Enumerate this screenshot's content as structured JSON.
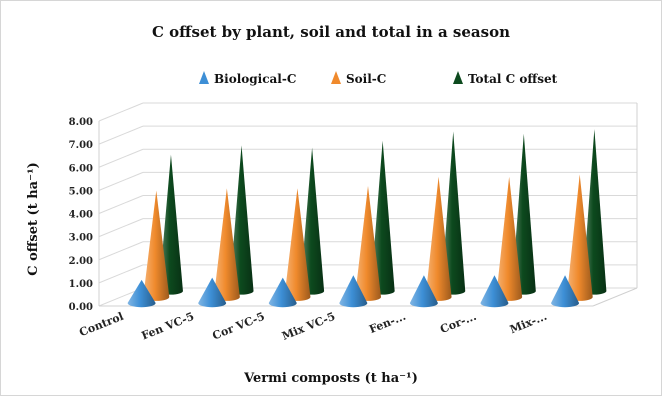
{
  "chart_data": {
    "type": "bar",
    "title": "C offset by plant, soil and total in a season",
    "xlabel": "Vermi composts (t ha⁻¹)",
    "ylabel": "C offset (t ha⁻¹)",
    "ylim": [
      0,
      8
    ],
    "yticks": [
      "0.00",
      "1.00",
      "2.00",
      "3.00",
      "4.00",
      "5.00",
      "6.00",
      "7.00",
      "8.00"
    ],
    "categories": [
      "Control",
      "Fen VC-5",
      "Cor VC-5",
      "Mix VC-5",
      "Fen-...",
      "Cor-...",
      "Mix-..."
    ],
    "legend_position": "top",
    "grid": true,
    "shape": "cone",
    "series": [
      {
        "name": "Biological-C",
        "color": "#3d8fd6",
        "values": [
          1.0,
          1.1,
          1.1,
          1.2,
          1.2,
          1.2,
          1.2
        ]
      },
      {
        "name": "Soil-C",
        "color": "#f08a2c",
        "values": [
          4.6,
          4.7,
          4.7,
          4.8,
          5.2,
          5.2,
          5.3
        ]
      },
      {
        "name": "Total C offset",
        "color": "#0d4a1e",
        "values": [
          5.9,
          6.3,
          6.2,
          6.5,
          6.9,
          6.8,
          7.0
        ]
      }
    ]
  }
}
